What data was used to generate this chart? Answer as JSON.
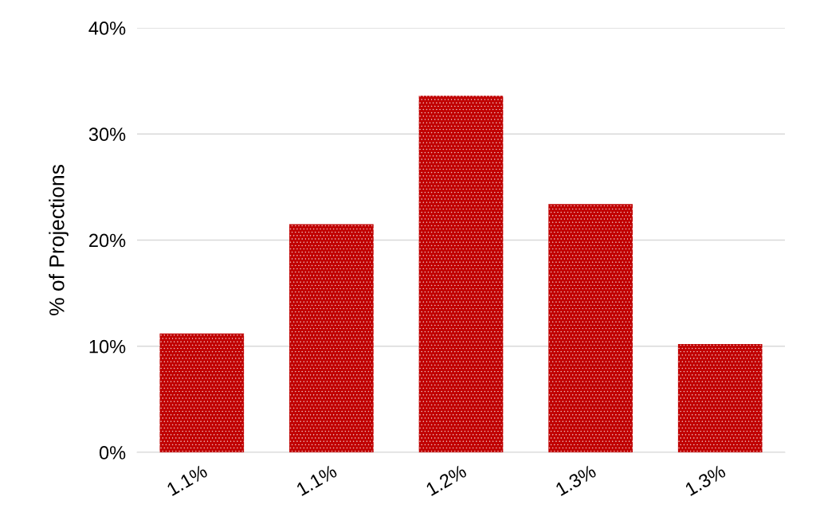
{
  "chart_data": {
    "type": "bar",
    "ylabel": "% of Projections",
    "categories": [
      "1.1%",
      "1.1%",
      "1.2%",
      "1.3%",
      "1.3%"
    ],
    "values": [
      11.2,
      21.5,
      33.6,
      23.4,
      10.2
    ],
    "color": "#c00000",
    "ylim": [
      0,
      40
    ],
    "yticks": [
      {
        "value": 0,
        "label": "0%"
      },
      {
        "value": 10,
        "label": "10%"
      },
      {
        "value": 20,
        "label": "20%"
      },
      {
        "value": 30,
        "label": "30%"
      },
      {
        "value": 40,
        "label": "40%"
      }
    ],
    "grid": "y",
    "legend": false
  }
}
